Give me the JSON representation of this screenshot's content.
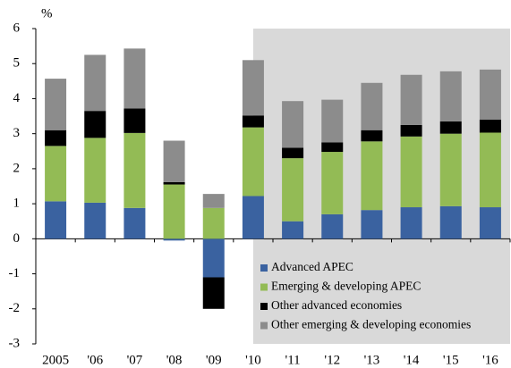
{
  "chart_data": {
    "type": "bar",
    "stacked": true,
    "y_label": "%",
    "categories": [
      "2005",
      "'06",
      "'07",
      "'08",
      "'09",
      "'10",
      "'11",
      "'12",
      "'13",
      "'14",
      "'15",
      "'16"
    ],
    "series": [
      {
        "name": "Advanced APEC",
        "color": "#3a62a0",
        "values": [
          1.07,
          1.03,
          0.88,
          -0.05,
          -1.1,
          1.22,
          0.5,
          0.7,
          0.82,
          0.9,
          0.93,
          0.9
        ]
      },
      {
        "name": "Emerging & developing APEC",
        "color": "#93bb55",
        "values": [
          1.58,
          1.85,
          2.14,
          1.55,
          0.88,
          1.96,
          1.8,
          1.78,
          1.96,
          2.02,
          2.07,
          2.13
        ]
      },
      {
        "name": "Other advanced economies",
        "color": "#000000",
        "values": [
          0.45,
          0.77,
          0.7,
          0.07,
          -0.9,
          0.34,
          0.3,
          0.27,
          0.32,
          0.33,
          0.35,
          0.37
        ]
      },
      {
        "name": "Other emerging & developing economies",
        "color": "#8c8c8c",
        "values": [
          1.47,
          1.6,
          1.71,
          1.18,
          0.4,
          1.58,
          1.33,
          1.22,
          1.35,
          1.43,
          1.43,
          1.43
        ]
      }
    ],
    "shaded": [
      "'11",
      "'16"
    ],
    "shade_color": "#d9d9d9",
    "ylim": [
      -3,
      6
    ],
    "yticks": [
      -3,
      -2,
      -1,
      0,
      1,
      2,
      3,
      4,
      5,
      6
    ],
    "grid": false,
    "legend": "lower right"
  }
}
